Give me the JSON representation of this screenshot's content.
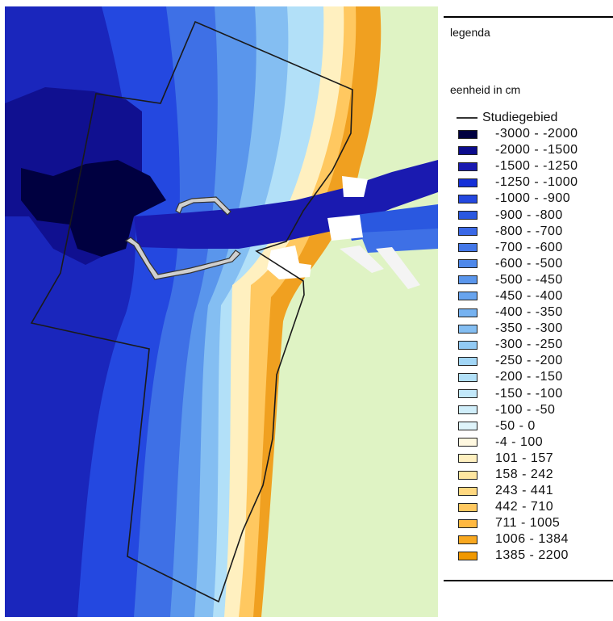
{
  "legend": {
    "title": "legenda",
    "unit": "eenheid in cm",
    "study_area_label": "Studiegebied",
    "items": [
      {
        "label": "-3000 - -2000",
        "color": "#000040"
      },
      {
        "label": "-2000 - -1500",
        "color": "#0c0c8c"
      },
      {
        "label": "-1500 - -1250",
        "color": "#1a1ab0"
      },
      {
        "label": "-1250 - -1000",
        "color": "#1530d8"
      },
      {
        "label": "-1000 - -900",
        "color": "#2448e0"
      },
      {
        "label": "-900 - -800",
        "color": "#2a58e0"
      },
      {
        "label": "-800 - -700",
        "color": "#3a68e6"
      },
      {
        "label": "-700 - -600",
        "color": "#4478e8"
      },
      {
        "label": "-600 - -500",
        "color": "#4e88ea"
      },
      {
        "label": "-500 - -450",
        "color": "#5a96ec"
      },
      {
        "label": "-450 - -400",
        "color": "#68a4ee"
      },
      {
        "label": "-400 - -350",
        "color": "#76b2f0"
      },
      {
        "label": "-350 - -300",
        "color": "#84bef2"
      },
      {
        "label": "-300 - -250",
        "color": "#92caf4"
      },
      {
        "label": "-250 - -200",
        "color": "#a2d6f6"
      },
      {
        "label": "-200 - -150",
        "color": "#b2e0f8"
      },
      {
        "label": "-150 - -100",
        "color": "#c2e8fa"
      },
      {
        "label": "-100 - -50",
        "color": "#d0eefa"
      },
      {
        "label": "-50 - 0",
        "color": "#dff4fb"
      },
      {
        "label": "-4 - 100",
        "color": "#fff8e0"
      },
      {
        "label": "101 - 157",
        "color": "#fff0c0"
      },
      {
        "label": "158 - 242",
        "color": "#ffe6a0"
      },
      {
        "label": "243 - 441",
        "color": "#ffd880"
      },
      {
        "label": "442 - 710",
        "color": "#ffc860"
      },
      {
        "label": "711 - 1005",
        "color": "#ffb840"
      },
      {
        "label": "1006 - 1384",
        "color": "#f8a820"
      },
      {
        "label": "1385 - 2200",
        "color": "#f09800"
      }
    ]
  },
  "map_colors": {
    "land": "#dff3c4",
    "study_outline": "#1a1a1a",
    "harbour": "#ffffff"
  }
}
